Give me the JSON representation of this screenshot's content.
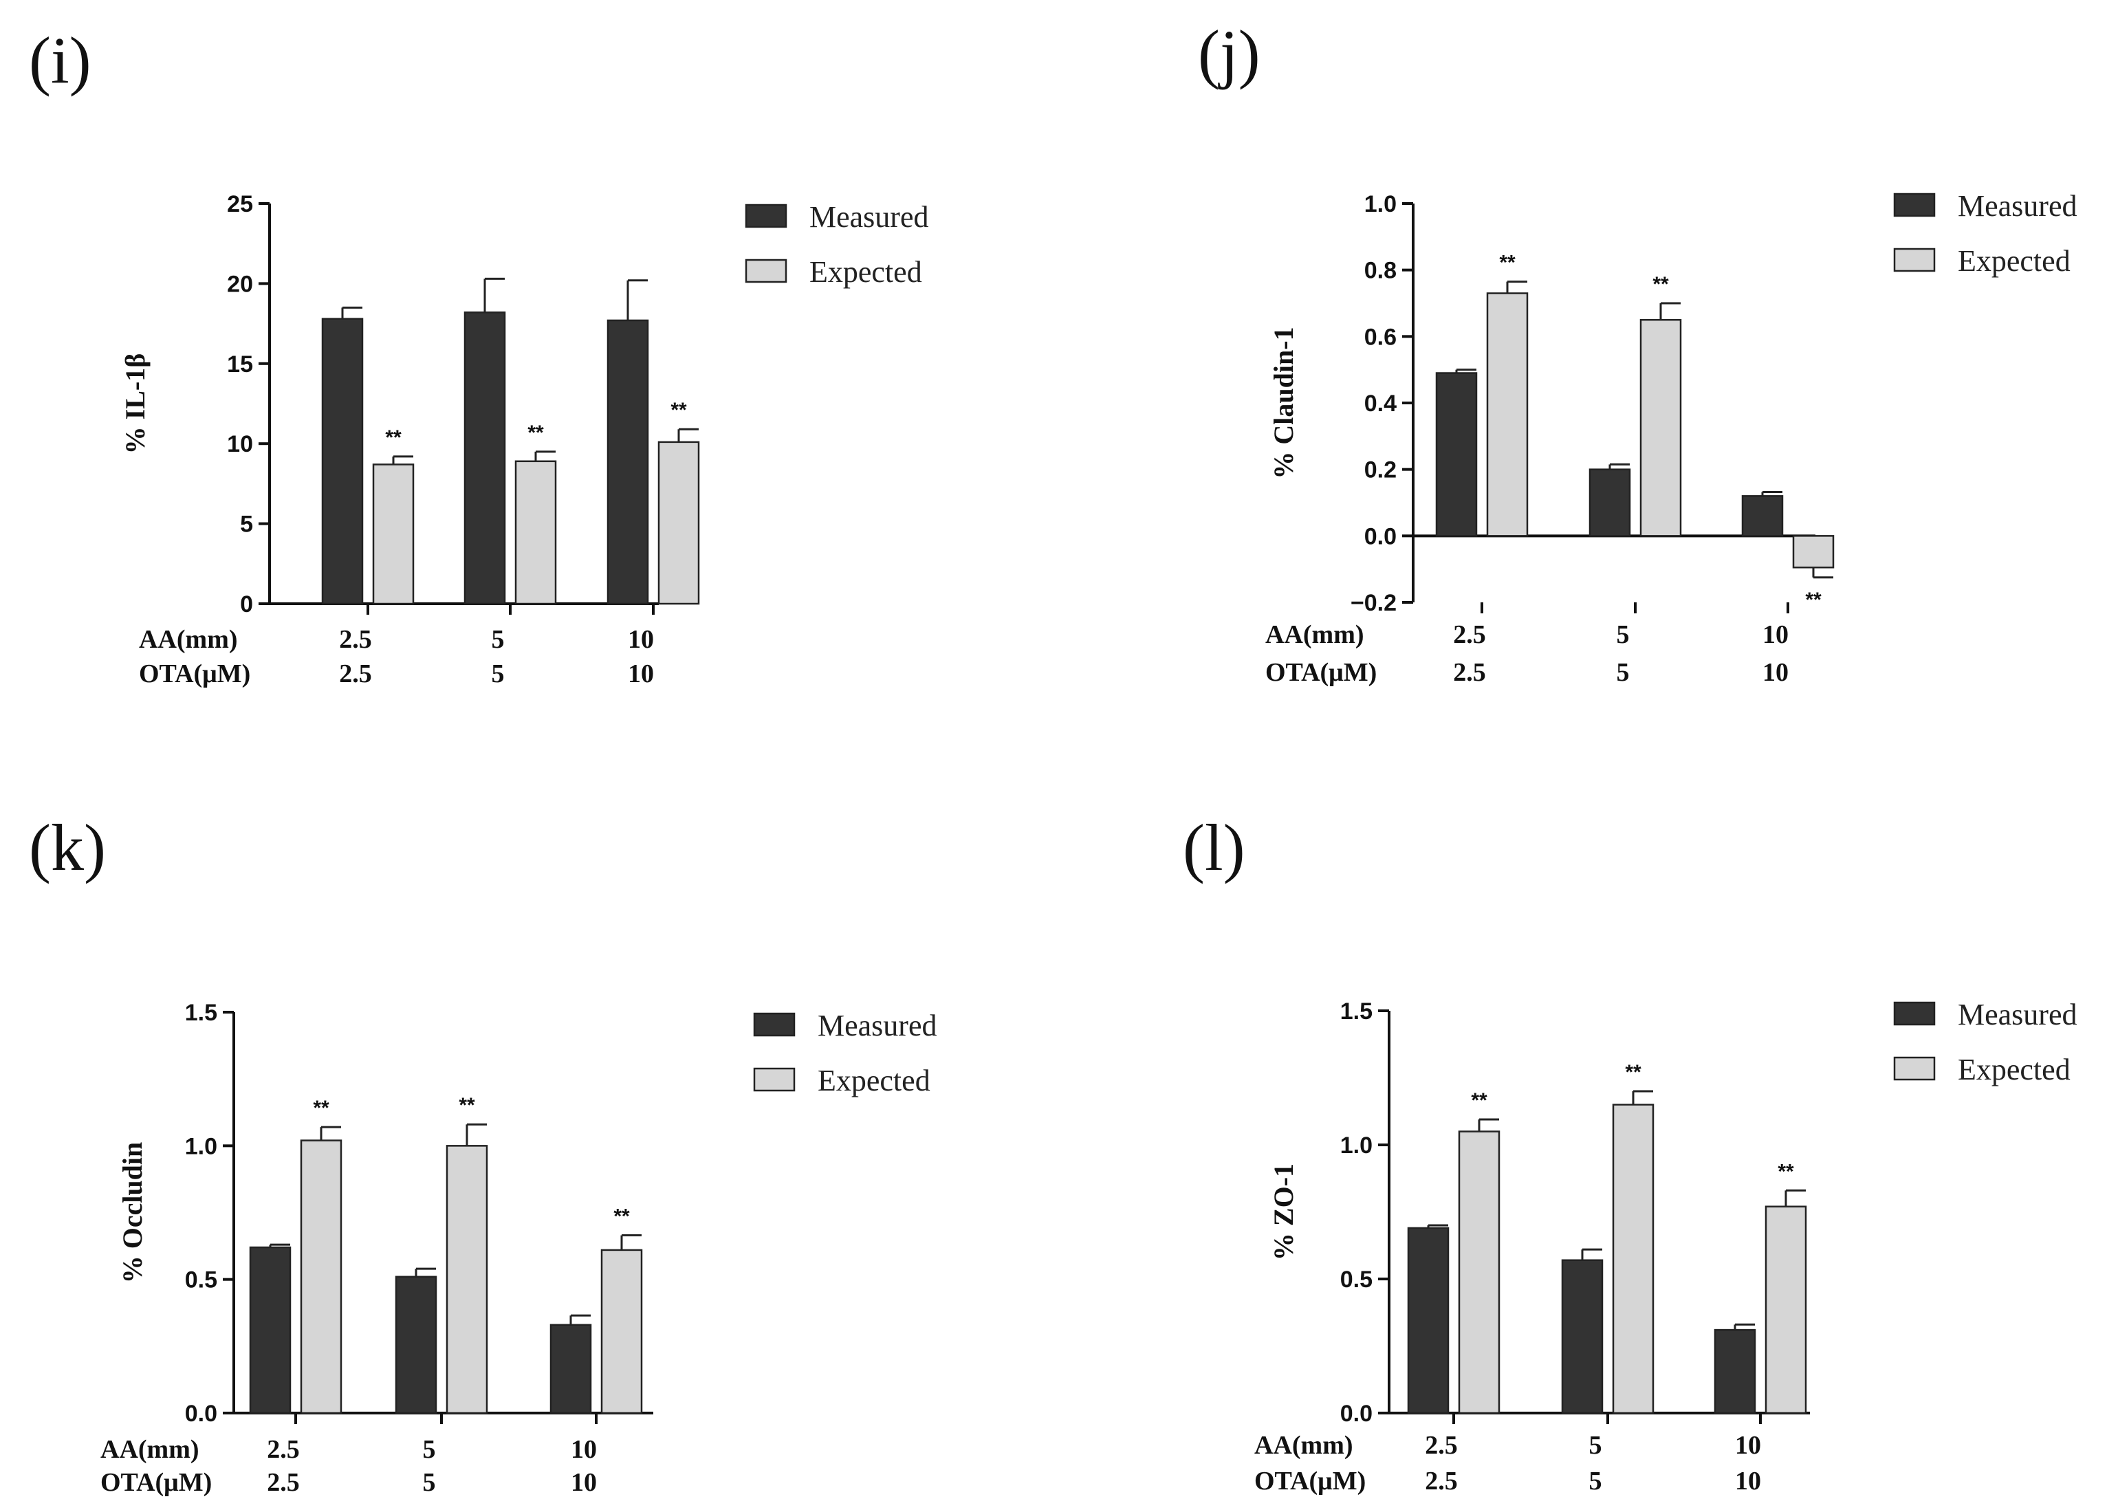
{
  "colors": {
    "measured": "#333333",
    "expected": "#d6d6d6",
    "axis": "#111111"
  },
  "legend": {
    "measured": "Measured",
    "expected": "Expected"
  },
  "row_labels": {
    "aa": "AA(mm)",
    "ota": "OTA(μM)"
  },
  "chart_data": [
    {
      "panel": "(i)",
      "type": "bar",
      "ylabel": "% IL-1β",
      "ylim": [
        0,
        25
      ],
      "yticks": [
        "0",
        "5",
        "10",
        "15",
        "20",
        "25"
      ],
      "categories_aa": [
        "2.5",
        "5",
        "10"
      ],
      "categories_ota": [
        "2.5",
        "5",
        "10"
      ],
      "series": [
        {
          "name": "Measured",
          "values": [
            17.8,
            18.2,
            17.7
          ],
          "errors": [
            0.7,
            2.1,
            2.5
          ]
        },
        {
          "name": "Expected",
          "values": [
            8.7,
            8.9,
            10.1
          ],
          "errors": [
            0.5,
            0.6,
            0.8
          ]
        }
      ],
      "significance": [
        "**",
        "**",
        "**"
      ]
    },
    {
      "panel": "(j)",
      "type": "bar",
      "ylabel": "% Claudin-1",
      "ylim": [
        -0.2,
        1.0
      ],
      "yticks": [
        "−0.2",
        "0.0",
        "0.2",
        "0.4",
        "0.6",
        "0.8",
        "1.0"
      ],
      "categories_aa": [
        "2.5",
        "5",
        "10"
      ],
      "categories_ota": [
        "2.5",
        "5",
        "10"
      ],
      "series": [
        {
          "name": "Measured",
          "values": [
            0.49,
            0.2,
            0.12
          ],
          "errors": [
            0.01,
            0.015,
            0.012
          ]
        },
        {
          "name": "Expected",
          "values": [
            0.73,
            0.65,
            -0.095
          ],
          "errors": [
            0.035,
            0.05,
            0.03
          ]
        }
      ],
      "significance": [
        "**",
        "**",
        "**"
      ]
    },
    {
      "panel": "(k)",
      "type": "bar",
      "ylabel": "% Occludin",
      "ylim": [
        0,
        1.5
      ],
      "yticks": [
        "0.0",
        "0.5",
        "1.0",
        "1.5"
      ],
      "categories_aa": [
        "2.5",
        "5",
        "10"
      ],
      "categories_ota": [
        "2.5",
        "5",
        "10"
      ],
      "series": [
        {
          "name": "Measured",
          "values": [
            0.62,
            0.51,
            0.33
          ],
          "errors": [
            0.01,
            0.03,
            0.035
          ]
        },
        {
          "name": "Expected",
          "values": [
            1.02,
            1.0,
            0.61
          ],
          "errors": [
            0.05,
            0.08,
            0.055
          ]
        }
      ],
      "significance": [
        "**",
        "**",
        "**"
      ]
    },
    {
      "panel": "(l)",
      "type": "bar",
      "ylabel": "% ZO-1",
      "ylim": [
        0,
        1.5
      ],
      "yticks": [
        "0.0",
        "0.5",
        "1.0",
        "1.5"
      ],
      "categories_aa": [
        "2.5",
        "5",
        "10"
      ],
      "categories_ota": [
        "2.5",
        "5",
        "10"
      ],
      "series": [
        {
          "name": "Measured",
          "values": [
            0.69,
            0.57,
            0.31
          ],
          "errors": [
            0.01,
            0.04,
            0.02
          ]
        },
        {
          "name": "Expected",
          "values": [
            1.05,
            1.15,
            0.77
          ],
          "errors": [
            0.045,
            0.05,
            0.06
          ]
        }
      ],
      "significance": [
        "**",
        "**",
        "**"
      ]
    }
  ]
}
